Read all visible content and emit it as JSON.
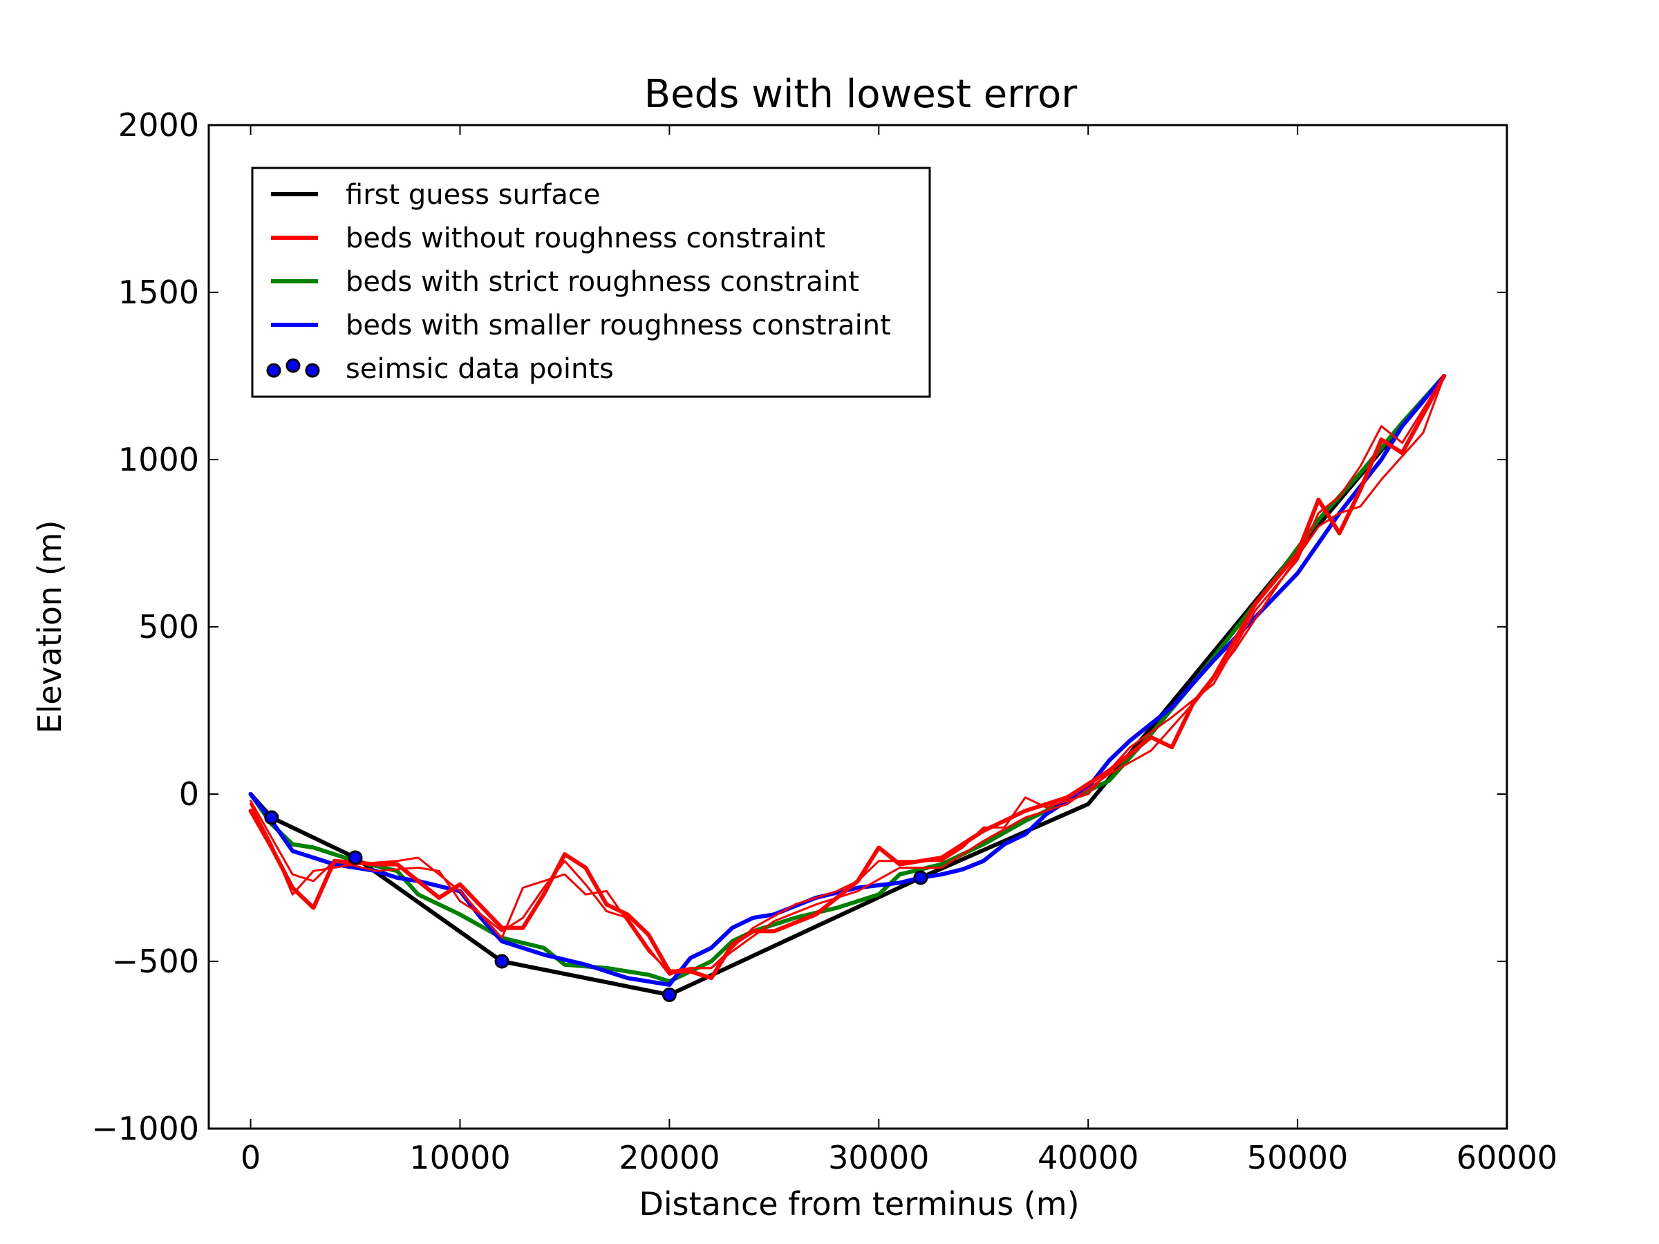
{
  "chart_data": {
    "type": "line",
    "title": "Beds with lowest error",
    "xlabel": "Distance from terminus (m)",
    "ylabel": "Elevation (m)",
    "xlim": [
      -2000,
      60000
    ],
    "ylim": [
      -1000,
      2000
    ],
    "xticks": [
      0,
      10000,
      20000,
      30000,
      40000,
      50000,
      60000
    ],
    "yticks": [
      -1000,
      -500,
      0,
      500,
      1000,
      1500,
      2000
    ],
    "xtick_labels": [
      "0",
      "10000",
      "20000",
      "30000",
      "40000",
      "50000",
      "60000"
    ],
    "ytick_labels": [
      "−1000",
      "−500",
      "0",
      "500",
      "1000",
      "1500",
      "2000"
    ],
    "grid": false,
    "legend_position": "top-left",
    "legend": [
      {
        "label": "first guess surface",
        "color": "#000000",
        "kind": "line"
      },
      {
        "label": "beds without roughness constraint",
        "color": "#ff0000",
        "kind": "line"
      },
      {
        "label": "beds with strict roughness constraint",
        "color": "#008000",
        "kind": "line"
      },
      {
        "label": "beds with smaller roughness constraint",
        "color": "#0000ff",
        "kind": "line"
      },
      {
        "label": "seimsic data points",
        "color": "#0000ff",
        "kind": "scatter"
      }
    ],
    "series": [
      {
        "name": "first guess surface",
        "color": "#000000",
        "width": 6,
        "x": [
          0,
          1000,
          2000,
          5000,
          12000,
          20000,
          32000,
          40000,
          50000,
          57000
        ],
        "y": [
          0,
          -70,
          -100,
          -190,
          -500,
          -600,
          -250,
          -30,
          730,
          1250
        ]
      },
      {
        "name": "beds with strict roughness constraint",
        "color": "#008000",
        "width": 6,
        "x": [
          0,
          1000,
          2000,
          3000,
          5000,
          7000,
          8000,
          10000,
          12000,
          14000,
          15000,
          17000,
          19000,
          20000,
          22000,
          23000,
          24000,
          26000,
          28000,
          30000,
          31000,
          33000,
          35000,
          37000,
          39000,
          41000,
          43000,
          45000,
          47000,
          49000,
          51000,
          53000,
          55000,
          57000
        ],
        "y": [
          0,
          -90,
          -150,
          -160,
          -200,
          -230,
          -300,
          -360,
          -430,
          -460,
          -510,
          -520,
          -540,
          -560,
          -500,
          -440,
          -410,
          -370,
          -340,
          -300,
          -240,
          -210,
          -150,
          -80,
          -20,
          40,
          180,
          330,
          490,
          650,
          820,
          960,
          1110,
          1250
        ]
      },
      {
        "name": "beds with smaller roughness constraint",
        "color": "#0000ff",
        "width": 6,
        "x": [
          0,
          1000,
          2000,
          3000,
          4000,
          6000,
          7000,
          8000,
          10000,
          11000,
          12000,
          14000,
          16000,
          18000,
          20000,
          21000,
          22000,
          23000,
          24000,
          25000,
          27000,
          29000,
          31000,
          32000,
          33000,
          34000,
          35000,
          36000,
          37000,
          38000,
          39000,
          40000,
          41000,
          42000,
          44000,
          46000,
          48000,
          50000,
          51000,
          52000,
          54000,
          55000,
          57000
        ],
        "y": [
          0,
          -80,
          -170,
          -190,
          -210,
          -230,
          -250,
          -260,
          -290,
          -370,
          -440,
          -480,
          -510,
          -550,
          -570,
          -490,
          -460,
          -400,
          -370,
          -360,
          -310,
          -280,
          -265,
          -250,
          -240,
          -225,
          -200,
          -150,
          -120,
          -60,
          -20,
          20,
          100,
          160,
          260,
          400,
          530,
          660,
          750,
          840,
          1000,
          1100,
          1250
        ]
      },
      {
        "name": "beds without roughness constraint",
        "color": "#ff0000",
        "width": 6,
        "x": [
          0,
          1000,
          2000,
          3000,
          4000,
          6000,
          7000,
          8000,
          9000,
          10000,
          12000,
          13000,
          14000,
          15000,
          16000,
          17000,
          18000,
          19000,
          20000,
          21000,
          22000,
          23000,
          24000,
          25000,
          27000,
          29000,
          30000,
          31000,
          32000,
          33000,
          35000,
          37000,
          39000,
          41000,
          43000,
          44000,
          45000,
          46000,
          48000,
          50000,
          51000,
          52000,
          53000,
          54000,
          55000,
          57000
        ],
        "y": [
          -50,
          -160,
          -280,
          -340,
          -200,
          -210,
          -210,
          -260,
          -310,
          -270,
          -400,
          -400,
          -300,
          -180,
          -220,
          -330,
          -360,
          -420,
          -530,
          -530,
          -550,
          -450,
          -410,
          -410,
          -360,
          -260,
          -160,
          -210,
          -200,
          -190,
          -110,
          -50,
          -10,
          70,
          170,
          140,
          270,
          350,
          570,
          720,
          880,
          780,
          910,
          1060,
          1020,
          1250
        ]
      },
      {
        "name": "",
        "color": "#ff0000",
        "width": 3,
        "x": [
          0,
          1000,
          2000,
          3000,
          5000,
          7000,
          8000,
          9000,
          10000,
          12000,
          13000,
          15000,
          16000,
          17000,
          19000,
          20000,
          21000,
          22000,
          24000,
          26000,
          28000,
          29000,
          30000,
          31000,
          33000,
          34000,
          35000,
          36000,
          37000,
          38000,
          40000,
          42000,
          44000,
          46000,
          48000,
          50000,
          51000,
          52000,
          53000,
          54000,
          55000,
          57000
        ],
        "y": [
          -30,
          -150,
          -300,
          -230,
          -210,
          -200,
          -190,
          -240,
          -290,
          -430,
          -280,
          -240,
          -300,
          -290,
          -470,
          -530,
          -520,
          -520,
          -400,
          -330,
          -290,
          -260,
          -200,
          -200,
          -200,
          -160,
          -100,
          -100,
          -10,
          -40,
          0,
          140,
          230,
          330,
          550,
          700,
          840,
          890,
          980,
          1100,
          1050,
          1250
        ]
      },
      {
        "name": "",
        "color": "#ff0000",
        "width": 3,
        "x": [
          0,
          2000,
          3000,
          4000,
          6000,
          8000,
          9000,
          10000,
          11000,
          12000,
          13000,
          14000,
          15000,
          16000,
          17000,
          18000,
          19000,
          20000,
          21000,
          22000,
          23000,
          25000,
          27000,
          29000,
          31000,
          33000,
          34000,
          35000,
          37000,
          39000,
          41000,
          43000,
          45000,
          47000,
          49000,
          51000,
          52000,
          53000,
          54000,
          56000,
          57000
        ],
        "y": [
          -20,
          -240,
          -260,
          -200,
          -230,
          -220,
          -230,
          -320,
          -360,
          -410,
          -370,
          -280,
          -200,
          -270,
          -350,
          -370,
          -460,
          -540,
          -520,
          -520,
          -470,
          -380,
          -330,
          -290,
          -220,
          -220,
          -180,
          -140,
          -70,
          -30,
          60,
          130,
          270,
          430,
          620,
          800,
          840,
          860,
          940,
          1080,
          1250
        ]
      },
      {
        "name": "seimsic data points",
        "color": "#0000ff",
        "type": "scatter",
        "x": [
          1000,
          5000,
          12000,
          20000,
          32000
        ],
        "y": [
          -70,
          -190,
          -500,
          -600,
          -250
        ]
      }
    ]
  }
}
